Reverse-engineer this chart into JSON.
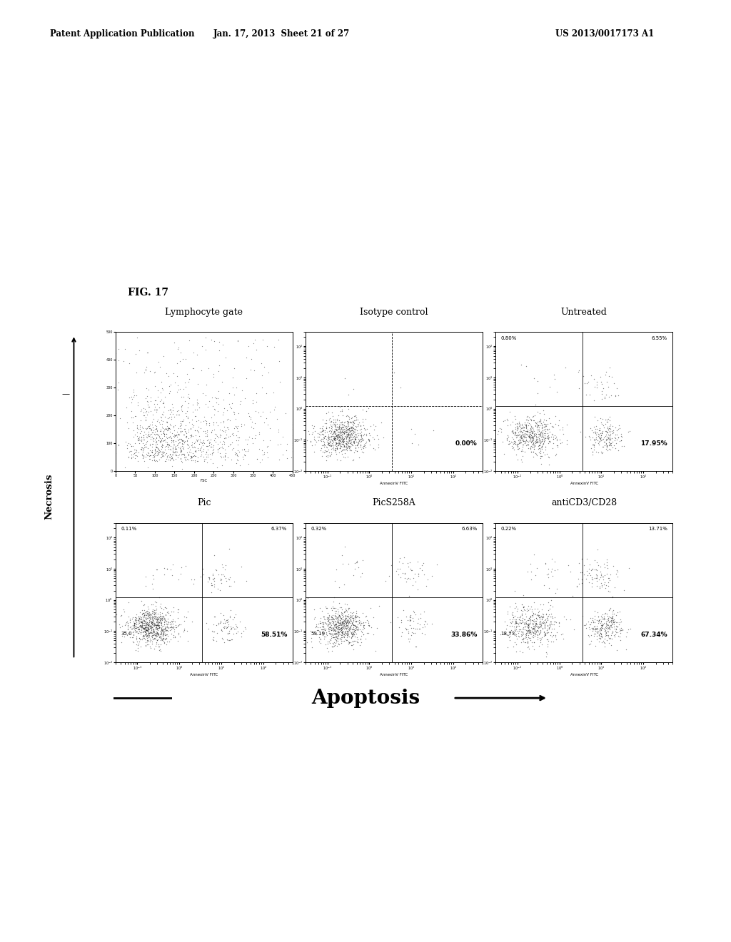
{
  "patent_header_left": "Patent Application Publication",
  "patent_header_mid": "Jan. 17, 2013  Sheet 21 of 27",
  "patent_header_right": "US 2013/0017173 A1",
  "fig_label": "FIG. 17",
  "panel_titles_row1": [
    "Lymphocyte gate",
    "Isotype control",
    "Untreated"
  ],
  "panel_titles_row2": [
    "Pic",
    "PicS258A",
    "antiCD3/CD28"
  ],
  "panel_percentages": [
    {
      "tl": null,
      "tr": null,
      "bl": null,
      "br": null
    },
    {
      "tl": null,
      "tr": null,
      "bl": null,
      "br": "0.00%"
    },
    {
      "tl": "0.80%",
      "tr": "6.55%",
      "bl": null,
      "br": "17.95%"
    },
    {
      "tl": "0.11%",
      "tr": "6.37%",
      "bl": "35.0",
      "br": "58.51%"
    },
    {
      "tl": "0.32%",
      "tr": "6.63%",
      "bl": "59.19",
      "br": "33.86%"
    },
    {
      "tl": "0.22%",
      "tr": "13.71%",
      "bl": "18.73",
      "br": "67.34%"
    }
  ],
  "necrosis_label": "Necrosis",
  "apoptosis_label": "Apoptosis",
  "x_axis_label": "AnnexinV FITC",
  "background_color": "#ffffff",
  "dot_color": "#333333"
}
